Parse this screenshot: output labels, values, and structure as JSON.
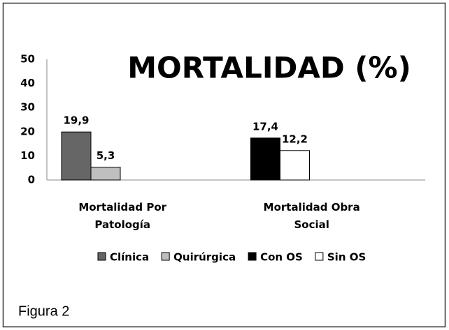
{
  "chart_data": {
    "type": "bar",
    "title": "MORTALIDAD (%)",
    "categories": [
      "Mortalidad Por Patología",
      "Mortalidad Obra Social"
    ],
    "series": [
      {
        "name": "Clínica",
        "color": "#666666",
        "values": [
          19.9,
          null
        ],
        "value_labels": [
          "19,9",
          null
        ]
      },
      {
        "name": "Quirúrgica",
        "color": "#bfbfbf",
        "values": [
          5.3,
          null
        ],
        "value_labels": [
          "5,3",
          null
        ]
      },
      {
        "name": "Con OS",
        "color": "#000000",
        "values": [
          null,
          17.4
        ],
        "value_labels": [
          null,
          "17,4"
        ]
      },
      {
        "name": "Sin OS",
        "color": "#ffffff",
        "values": [
          null,
          12.2
        ],
        "value_labels": [
          null,
          "12,2"
        ]
      }
    ],
    "ylim": [
      0,
      50
    ],
    "yticks": [
      0,
      10,
      20,
      30,
      40,
      50
    ],
    "grid": false,
    "legend": "bottom"
  },
  "caption": "Figura 2"
}
